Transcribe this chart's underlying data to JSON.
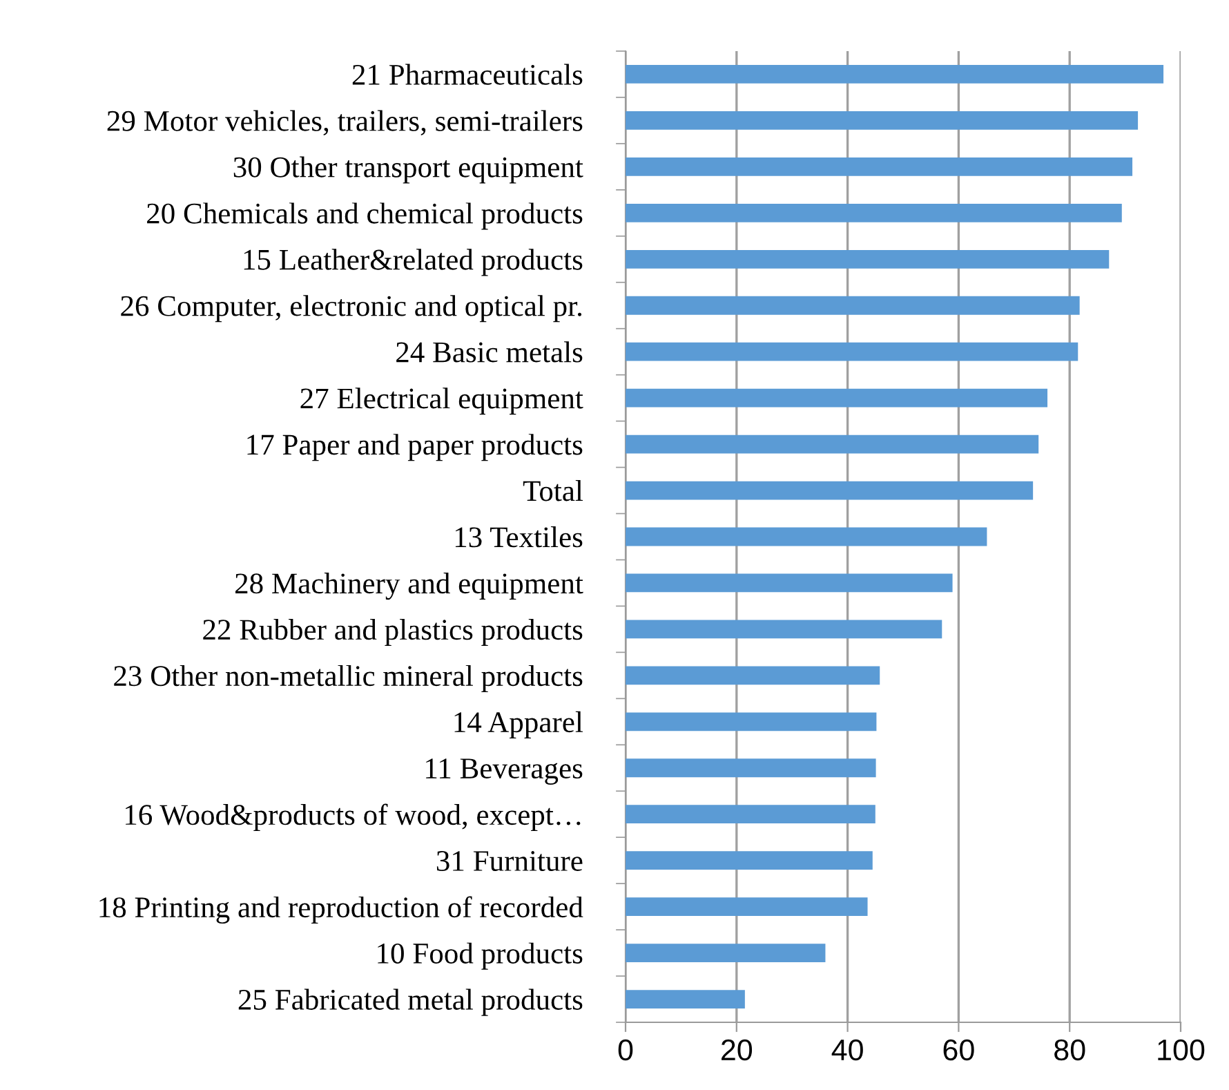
{
  "chart_data": {
    "type": "bar",
    "orientation": "horizontal",
    "categories": [
      "21 Pharmaceuticals",
      "29 Motor vehicles, trailers, semi-trailers",
      "30 Other transport equipment",
      "20 Chemicals and chemical products",
      "15 Leather&related products",
      "26 Computer, electronic and optical pr.",
      "24 Basic metals",
      "27 Electrical equipment",
      "17 Paper and paper products",
      "Total",
      "13 Textiles",
      "28 Machinery and equipment",
      "22 Rubber and plastics products",
      "23 Other non-metallic mineral products",
      "14 Apparel",
      "11 Beverages",
      "16 Wood&products of wood, except…",
      "31 Furniture",
      "18 Printing and reproduction of recorded",
      "10 Food products",
      "25 Fabricated metal products"
    ],
    "values": [
      96.9,
      92.3,
      91.3,
      89.4,
      87.1,
      81.8,
      81.5,
      76.0,
      74.4,
      73.4,
      65.1,
      58.9,
      57.0,
      45.8,
      45.2,
      45.1,
      45.0,
      44.5,
      43.6,
      36.0,
      21.5
    ],
    "color": "#5b9bd5",
    "xlim": [
      0,
      100
    ],
    "xticks": [
      0,
      20,
      40,
      60,
      80,
      100
    ],
    "grid": "x"
  }
}
